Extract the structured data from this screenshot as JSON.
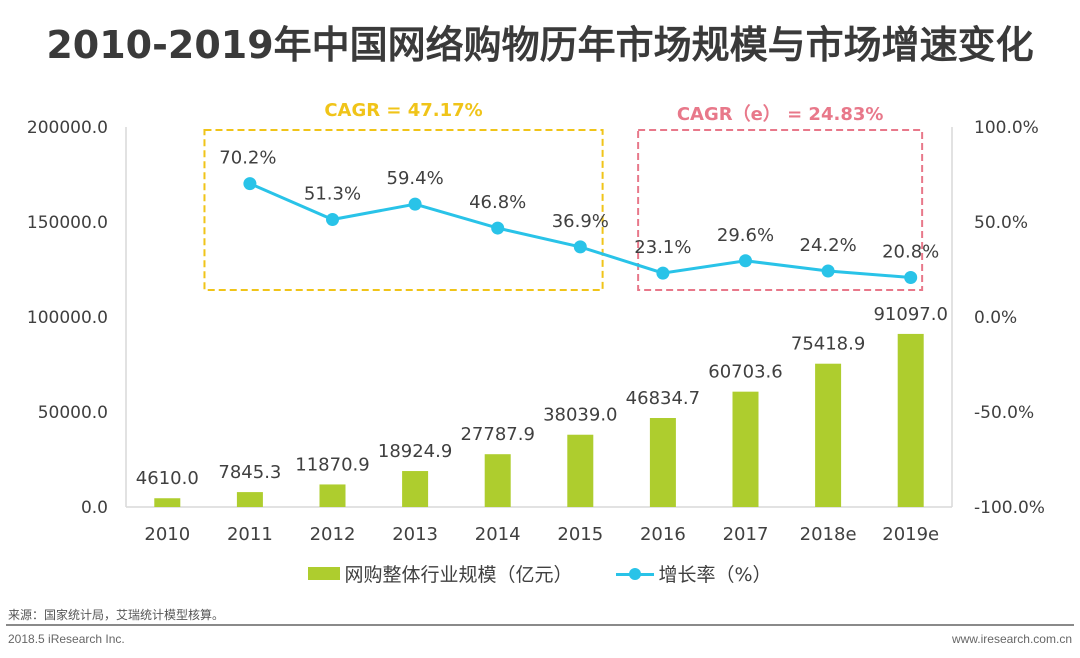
{
  "title": "2010-2019年中国网络购物历年市场规模与市场增速变化",
  "colors": {
    "bar": "#aecd2e",
    "line": "#29c3e8",
    "cagr_actual": "#f0c419",
    "cagr_estimate": "#e8788a",
    "axis": "#d9d9d9",
    "text": "#404040"
  },
  "chart_data": {
    "type": "bar+line",
    "title": "2010-2019年中国网络购物历年市场规模与市场增速变化",
    "categories": [
      "2010",
      "2011",
      "2012",
      "2013",
      "2014",
      "2015",
      "2016",
      "2017",
      "2018e",
      "2019e"
    ],
    "series": [
      {
        "name": "网购整体行业规模（亿元）",
        "type": "bar",
        "axis": "left",
        "values": [
          4610.0,
          7845.3,
          11870.9,
          18924.9,
          27787.9,
          38039.0,
          46834.7,
          60703.6,
          75418.9,
          91097.0
        ],
        "labels": [
          "4610.0",
          "7845.3",
          "11870.9",
          "18924.9",
          "27787.9",
          "38039.0",
          "46834.7",
          "60703.6",
          "75418.9",
          "91097.0"
        ]
      },
      {
        "name": "增长率（%）",
        "type": "line",
        "axis": "right",
        "values": [
          null,
          70.2,
          51.3,
          59.4,
          46.8,
          36.9,
          23.1,
          29.6,
          24.2,
          20.8
        ],
        "labels": [
          null,
          "70.2%",
          "51.3%",
          "59.4%",
          "46.8%",
          "36.9%",
          "23.1%",
          "29.6%",
          "24.2%",
          "20.8%"
        ]
      }
    ],
    "y_left": {
      "range": [
        0,
        200000
      ],
      "ticks": [
        0,
        50000,
        100000,
        150000,
        200000
      ],
      "tick_labels": [
        "0.0",
        "50000.0",
        "100000.0",
        "150000.0",
        "200000.0"
      ]
    },
    "y_right": {
      "range": [
        -100,
        100
      ],
      "ticks": [
        -100,
        -50,
        0,
        50,
        100
      ],
      "tick_labels": [
        "-100.0%",
        "-50.0%",
        "0.0%",
        "50.0%",
        "100.0%"
      ]
    },
    "annotations": [
      {
        "text": "CAGR = 47.17%",
        "span": [
          "2011",
          "2015"
        ],
        "color": "#f0c419",
        "style": "dashed-box"
      },
      {
        "text": "CAGR（e） = 24.83%",
        "span": [
          "2016",
          "2019e"
        ],
        "color": "#e8788a",
        "style": "dashed-box"
      }
    ],
    "grid": false,
    "legend": "bottom"
  },
  "legend": {
    "bar_label": "网购整体行业规模（亿元）",
    "line_label": "增长率（%）"
  },
  "footer": {
    "source": "来源：国家统计局，艾瑞统计模型核算。",
    "left": "2018.5 iResearch Inc.",
    "right": "www.iresearch.com.cn"
  }
}
